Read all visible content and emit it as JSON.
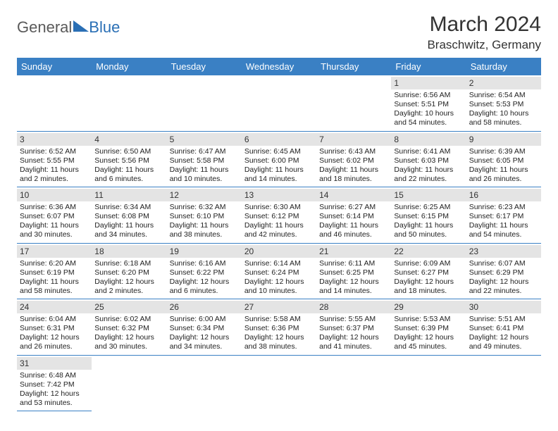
{
  "brand": {
    "general": "General",
    "blue": "Blue"
  },
  "title": "March 2024",
  "location": "Braschwitz, Germany",
  "colors": {
    "header_bg": "#3a80c4",
    "header_text": "#ffffff",
    "daynum_bg": "#e4e4e4",
    "row_divider": "#3a80c4",
    "logo_gray": "#5a5a5a",
    "logo_blue": "#2a6fb5",
    "page_bg": "#ffffff"
  },
  "day_headers": [
    "Sunday",
    "Monday",
    "Tuesday",
    "Wednesday",
    "Thursday",
    "Friday",
    "Saturday"
  ],
  "weeks": [
    [
      null,
      null,
      null,
      null,
      null,
      {
        "n": "1",
        "sr": "Sunrise: 6:56 AM",
        "ss": "Sunset: 5:51 PM",
        "dl": "Daylight: 10 hours and 54 minutes."
      },
      {
        "n": "2",
        "sr": "Sunrise: 6:54 AM",
        "ss": "Sunset: 5:53 PM",
        "dl": "Daylight: 10 hours and 58 minutes."
      }
    ],
    [
      {
        "n": "3",
        "sr": "Sunrise: 6:52 AM",
        "ss": "Sunset: 5:55 PM",
        "dl": "Daylight: 11 hours and 2 minutes."
      },
      {
        "n": "4",
        "sr": "Sunrise: 6:50 AM",
        "ss": "Sunset: 5:56 PM",
        "dl": "Daylight: 11 hours and 6 minutes."
      },
      {
        "n": "5",
        "sr": "Sunrise: 6:47 AM",
        "ss": "Sunset: 5:58 PM",
        "dl": "Daylight: 11 hours and 10 minutes."
      },
      {
        "n": "6",
        "sr": "Sunrise: 6:45 AM",
        "ss": "Sunset: 6:00 PM",
        "dl": "Daylight: 11 hours and 14 minutes."
      },
      {
        "n": "7",
        "sr": "Sunrise: 6:43 AM",
        "ss": "Sunset: 6:02 PM",
        "dl": "Daylight: 11 hours and 18 minutes."
      },
      {
        "n": "8",
        "sr": "Sunrise: 6:41 AM",
        "ss": "Sunset: 6:03 PM",
        "dl": "Daylight: 11 hours and 22 minutes."
      },
      {
        "n": "9",
        "sr": "Sunrise: 6:39 AM",
        "ss": "Sunset: 6:05 PM",
        "dl": "Daylight: 11 hours and 26 minutes."
      }
    ],
    [
      {
        "n": "10",
        "sr": "Sunrise: 6:36 AM",
        "ss": "Sunset: 6:07 PM",
        "dl": "Daylight: 11 hours and 30 minutes."
      },
      {
        "n": "11",
        "sr": "Sunrise: 6:34 AM",
        "ss": "Sunset: 6:08 PM",
        "dl": "Daylight: 11 hours and 34 minutes."
      },
      {
        "n": "12",
        "sr": "Sunrise: 6:32 AM",
        "ss": "Sunset: 6:10 PM",
        "dl": "Daylight: 11 hours and 38 minutes."
      },
      {
        "n": "13",
        "sr": "Sunrise: 6:30 AM",
        "ss": "Sunset: 6:12 PM",
        "dl": "Daylight: 11 hours and 42 minutes."
      },
      {
        "n": "14",
        "sr": "Sunrise: 6:27 AM",
        "ss": "Sunset: 6:14 PM",
        "dl": "Daylight: 11 hours and 46 minutes."
      },
      {
        "n": "15",
        "sr": "Sunrise: 6:25 AM",
        "ss": "Sunset: 6:15 PM",
        "dl": "Daylight: 11 hours and 50 minutes."
      },
      {
        "n": "16",
        "sr": "Sunrise: 6:23 AM",
        "ss": "Sunset: 6:17 PM",
        "dl": "Daylight: 11 hours and 54 minutes."
      }
    ],
    [
      {
        "n": "17",
        "sr": "Sunrise: 6:20 AM",
        "ss": "Sunset: 6:19 PM",
        "dl": "Daylight: 11 hours and 58 minutes."
      },
      {
        "n": "18",
        "sr": "Sunrise: 6:18 AM",
        "ss": "Sunset: 6:20 PM",
        "dl": "Daylight: 12 hours and 2 minutes."
      },
      {
        "n": "19",
        "sr": "Sunrise: 6:16 AM",
        "ss": "Sunset: 6:22 PM",
        "dl": "Daylight: 12 hours and 6 minutes."
      },
      {
        "n": "20",
        "sr": "Sunrise: 6:14 AM",
        "ss": "Sunset: 6:24 PM",
        "dl": "Daylight: 12 hours and 10 minutes."
      },
      {
        "n": "21",
        "sr": "Sunrise: 6:11 AM",
        "ss": "Sunset: 6:25 PM",
        "dl": "Daylight: 12 hours and 14 minutes."
      },
      {
        "n": "22",
        "sr": "Sunrise: 6:09 AM",
        "ss": "Sunset: 6:27 PM",
        "dl": "Daylight: 12 hours and 18 minutes."
      },
      {
        "n": "23",
        "sr": "Sunrise: 6:07 AM",
        "ss": "Sunset: 6:29 PM",
        "dl": "Daylight: 12 hours and 22 minutes."
      }
    ],
    [
      {
        "n": "24",
        "sr": "Sunrise: 6:04 AM",
        "ss": "Sunset: 6:31 PM",
        "dl": "Daylight: 12 hours and 26 minutes."
      },
      {
        "n": "25",
        "sr": "Sunrise: 6:02 AM",
        "ss": "Sunset: 6:32 PM",
        "dl": "Daylight: 12 hours and 30 minutes."
      },
      {
        "n": "26",
        "sr": "Sunrise: 6:00 AM",
        "ss": "Sunset: 6:34 PM",
        "dl": "Daylight: 12 hours and 34 minutes."
      },
      {
        "n": "27",
        "sr": "Sunrise: 5:58 AM",
        "ss": "Sunset: 6:36 PM",
        "dl": "Daylight: 12 hours and 38 minutes."
      },
      {
        "n": "28",
        "sr": "Sunrise: 5:55 AM",
        "ss": "Sunset: 6:37 PM",
        "dl": "Daylight: 12 hours and 41 minutes."
      },
      {
        "n": "29",
        "sr": "Sunrise: 5:53 AM",
        "ss": "Sunset: 6:39 PM",
        "dl": "Daylight: 12 hours and 45 minutes."
      },
      {
        "n": "30",
        "sr": "Sunrise: 5:51 AM",
        "ss": "Sunset: 6:41 PM",
        "dl": "Daylight: 12 hours and 49 minutes."
      }
    ],
    [
      {
        "n": "31",
        "sr": "Sunrise: 6:48 AM",
        "ss": "Sunset: 7:42 PM",
        "dl": "Daylight: 12 hours and 53 minutes."
      },
      null,
      null,
      null,
      null,
      null,
      null
    ]
  ]
}
